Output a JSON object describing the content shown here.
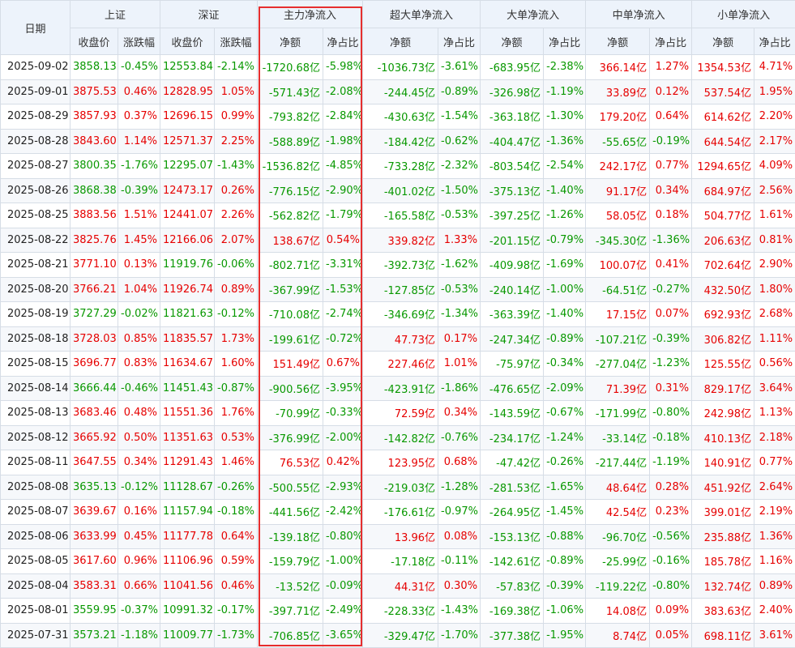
{
  "header": {
    "date_label": "日期",
    "groups": [
      {
        "label": "上证",
        "cols": [
          "收盘价",
          "涨跌幅"
        ]
      },
      {
        "label": "深证",
        "cols": [
          "收盘价",
          "涨跌幅"
        ]
      },
      {
        "label": "主力净流入",
        "cols": [
          "净额",
          "净占比"
        ]
      },
      {
        "label": "超大单净流入",
        "cols": [
          "净额",
          "净占比"
        ]
      },
      {
        "label": "大单净流入",
        "cols": [
          "净额",
          "净占比"
        ]
      },
      {
        "label": "中单净流入",
        "cols": [
          "净额",
          "净占比"
        ]
      },
      {
        "label": "小单净流入",
        "cols": [
          "净额",
          "净占比"
        ]
      }
    ]
  },
  "colors": {
    "up": "#e60000",
    "down": "#089800",
    "highlight_border": "#e62e2e"
  },
  "rows": [
    [
      "2025-09-02",
      "3858.13",
      "-0.45%",
      "12553.84",
      "-2.14%",
      "-1720.68亿",
      "-5.98%",
      "-1036.73亿",
      "-3.61%",
      "-683.95亿",
      "-2.38%",
      "366.14亿",
      "1.27%",
      "1354.53亿",
      "4.71%"
    ],
    [
      "2025-09-01",
      "3875.53",
      "0.46%",
      "12828.95",
      "1.05%",
      "-571.43亿",
      "-2.08%",
      "-244.45亿",
      "-0.89%",
      "-326.98亿",
      "-1.19%",
      "33.89亿",
      "0.12%",
      "537.54亿",
      "1.95%"
    ],
    [
      "2025-08-29",
      "3857.93",
      "0.37%",
      "12696.15",
      "0.99%",
      "-793.82亿",
      "-2.84%",
      "-430.63亿",
      "-1.54%",
      "-363.18亿",
      "-1.30%",
      "179.20亿",
      "0.64%",
      "614.62亿",
      "2.20%"
    ],
    [
      "2025-08-28",
      "3843.60",
      "1.14%",
      "12571.37",
      "2.25%",
      "-588.89亿",
      "-1.98%",
      "-184.42亿",
      "-0.62%",
      "-404.47亿",
      "-1.36%",
      "-55.65亿",
      "-0.19%",
      "644.54亿",
      "2.17%"
    ],
    [
      "2025-08-27",
      "3800.35",
      "-1.76%",
      "12295.07",
      "-1.43%",
      "-1536.82亿",
      "-4.85%",
      "-733.28亿",
      "-2.32%",
      "-803.54亿",
      "-2.54%",
      "242.17亿",
      "0.77%",
      "1294.65亿",
      "4.09%"
    ],
    [
      "2025-08-26",
      "3868.38",
      "-0.39%",
      "12473.17",
      "0.26%",
      "-776.15亿",
      "-2.90%",
      "-401.02亿",
      "-1.50%",
      "-375.13亿",
      "-1.40%",
      "91.17亿",
      "0.34%",
      "684.97亿",
      "2.56%"
    ],
    [
      "2025-08-25",
      "3883.56",
      "1.51%",
      "12441.07",
      "2.26%",
      "-562.82亿",
      "-1.79%",
      "-165.58亿",
      "-0.53%",
      "-397.25亿",
      "-1.26%",
      "58.05亿",
      "0.18%",
      "504.77亿",
      "1.61%"
    ],
    [
      "2025-08-22",
      "3825.76",
      "1.45%",
      "12166.06",
      "2.07%",
      "138.67亿",
      "0.54%",
      "339.82亿",
      "1.33%",
      "-201.15亿",
      "-0.79%",
      "-345.30亿",
      "-1.36%",
      "206.63亿",
      "0.81%"
    ],
    [
      "2025-08-21",
      "3771.10",
      "0.13%",
      "11919.76",
      "-0.06%",
      "-802.71亿",
      "-3.31%",
      "-392.73亿",
      "-1.62%",
      "-409.98亿",
      "-1.69%",
      "100.07亿",
      "0.41%",
      "702.64亿",
      "2.90%"
    ],
    [
      "2025-08-20",
      "3766.21",
      "1.04%",
      "11926.74",
      "0.89%",
      "-367.99亿",
      "-1.53%",
      "-127.85亿",
      "-0.53%",
      "-240.14亿",
      "-1.00%",
      "-64.51亿",
      "-0.27%",
      "432.50亿",
      "1.80%"
    ],
    [
      "2025-08-19",
      "3727.29",
      "-0.02%",
      "11821.63",
      "-0.12%",
      "-710.08亿",
      "-2.74%",
      "-346.69亿",
      "-1.34%",
      "-363.39亿",
      "-1.40%",
      "17.15亿",
      "0.07%",
      "692.93亿",
      "2.68%"
    ],
    [
      "2025-08-18",
      "3728.03",
      "0.85%",
      "11835.57",
      "1.73%",
      "-199.61亿",
      "-0.72%",
      "47.73亿",
      "0.17%",
      "-247.34亿",
      "-0.89%",
      "-107.21亿",
      "-0.39%",
      "306.82亿",
      "1.11%"
    ],
    [
      "2025-08-15",
      "3696.77",
      "0.83%",
      "11634.67",
      "1.60%",
      "151.49亿",
      "0.67%",
      "227.46亿",
      "1.01%",
      "-75.97亿",
      "-0.34%",
      "-277.04亿",
      "-1.23%",
      "125.55亿",
      "0.56%"
    ],
    [
      "2025-08-14",
      "3666.44",
      "-0.46%",
      "11451.43",
      "-0.87%",
      "-900.56亿",
      "-3.95%",
      "-423.91亿",
      "-1.86%",
      "-476.65亿",
      "-2.09%",
      "71.39亿",
      "0.31%",
      "829.17亿",
      "3.64%"
    ],
    [
      "2025-08-13",
      "3683.46",
      "0.48%",
      "11551.36",
      "1.76%",
      "-70.99亿",
      "-0.33%",
      "72.59亿",
      "0.34%",
      "-143.59亿",
      "-0.67%",
      "-171.99亿",
      "-0.80%",
      "242.98亿",
      "1.13%"
    ],
    [
      "2025-08-12",
      "3665.92",
      "0.50%",
      "11351.63",
      "0.53%",
      "-376.99亿",
      "-2.00%",
      "-142.82亿",
      "-0.76%",
      "-234.17亿",
      "-1.24%",
      "-33.14亿",
      "-0.18%",
      "410.13亿",
      "2.18%"
    ],
    [
      "2025-08-11",
      "3647.55",
      "0.34%",
      "11291.43",
      "1.46%",
      "76.53亿",
      "0.42%",
      "123.95亿",
      "0.68%",
      "-47.42亿",
      "-0.26%",
      "-217.44亿",
      "-1.19%",
      "140.91亿",
      "0.77%"
    ],
    [
      "2025-08-08",
      "3635.13",
      "-0.12%",
      "11128.67",
      "-0.26%",
      "-500.55亿",
      "-2.93%",
      "-219.03亿",
      "-1.28%",
      "-281.53亿",
      "-1.65%",
      "48.64亿",
      "0.28%",
      "451.92亿",
      "2.64%"
    ],
    [
      "2025-08-07",
      "3639.67",
      "0.16%",
      "11157.94",
      "-0.18%",
      "-441.56亿",
      "-2.42%",
      "-176.61亿",
      "-0.97%",
      "-264.95亿",
      "-1.45%",
      "42.54亿",
      "0.23%",
      "399.01亿",
      "2.19%"
    ],
    [
      "2025-08-06",
      "3633.99",
      "0.45%",
      "11177.78",
      "0.64%",
      "-139.18亿",
      "-0.80%",
      "13.96亿",
      "0.08%",
      "-153.13亿",
      "-0.88%",
      "-96.70亿",
      "-0.56%",
      "235.88亿",
      "1.36%"
    ],
    [
      "2025-08-05",
      "3617.60",
      "0.96%",
      "11106.96",
      "0.59%",
      "-159.79亿",
      "-1.00%",
      "-17.18亿",
      "-0.11%",
      "-142.61亿",
      "-0.89%",
      "-25.99亿",
      "-0.16%",
      "185.78亿",
      "1.16%"
    ],
    [
      "2025-08-04",
      "3583.31",
      "0.66%",
      "11041.56",
      "0.46%",
      "-13.52亿",
      "-0.09%",
      "44.31亿",
      "0.30%",
      "-57.83亿",
      "-0.39%",
      "-119.22亿",
      "-0.80%",
      "132.74亿",
      "0.89%"
    ],
    [
      "2025-08-01",
      "3559.95",
      "-0.37%",
      "10991.32",
      "-0.17%",
      "-397.71亿",
      "-2.49%",
      "-228.33亿",
      "-1.43%",
      "-169.38亿",
      "-1.06%",
      "14.08亿",
      "0.09%",
      "383.63亿",
      "2.40%"
    ],
    [
      "2025-07-31",
      "3573.21",
      "-1.18%",
      "11009.77",
      "-1.73%",
      "-706.85亿",
      "-3.65%",
      "-329.47亿",
      "-1.70%",
      "-377.38亿",
      "-1.95%",
      "8.74亿",
      "0.05%",
      "698.11亿",
      "3.61%"
    ]
  ]
}
